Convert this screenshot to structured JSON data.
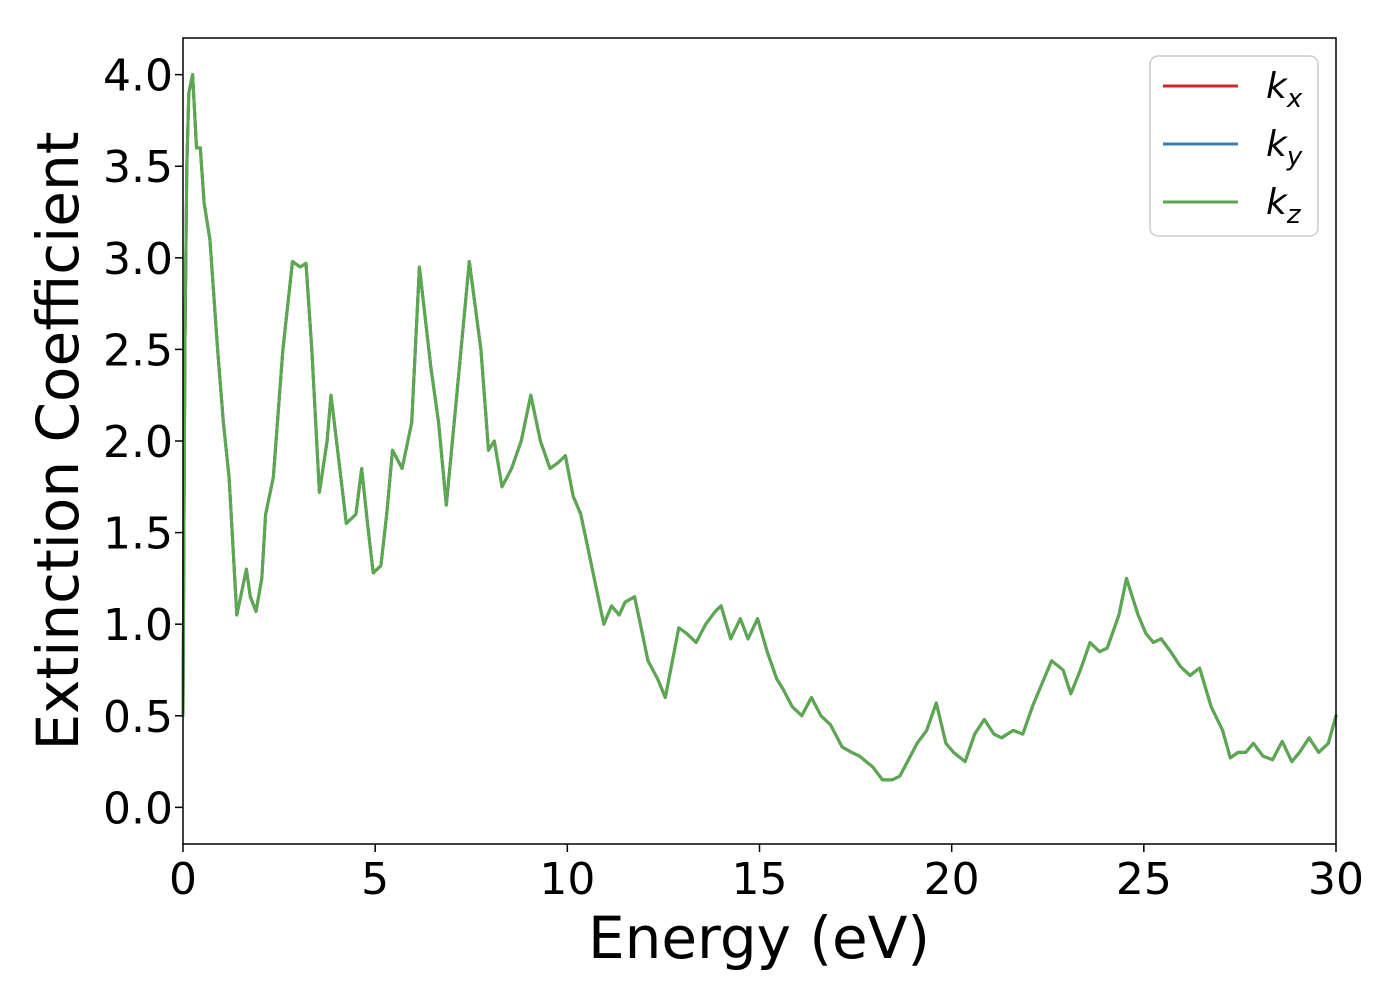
{
  "chart_data": {
    "type": "line",
    "title": "",
    "xlabel": "Energy (eV)",
    "ylabel": "Extinction Coefficient",
    "xlim": [
      0,
      30
    ],
    "ylim": [
      -0.2,
      4.2
    ],
    "xticks": [
      0,
      5,
      10,
      15,
      20,
      25,
      30
    ],
    "yticks": [
      0.0,
      0.5,
      1.0,
      1.5,
      2.0,
      2.5,
      3.0,
      3.5,
      4.0
    ],
    "xtick_labels": [
      "0",
      "5",
      "10",
      "15",
      "20",
      "25",
      "30"
    ],
    "ytick_labels": [
      "0.0",
      "0.5",
      "1.0",
      "1.5",
      "2.0",
      "2.5",
      "3.0",
      "3.5",
      "4.0"
    ],
    "grid": false,
    "legend_position": "top-right",
    "series": [
      {
        "name": "k_x",
        "label_main": "k",
        "label_sub": "x",
        "color": "#d62728",
        "x": [
          0.0,
          0.05,
          0.1,
          0.15,
          0.25,
          0.35,
          0.45,
          0.55,
          0.7,
          0.9,
          1.05,
          1.2,
          1.4,
          1.55,
          1.65,
          1.75,
          1.9,
          2.05,
          2.15,
          2.35,
          2.6,
          2.85,
          3.05,
          3.2,
          3.35,
          3.55,
          3.75,
          3.85,
          4.05,
          4.25,
          4.5,
          4.65,
          4.8,
          4.95,
          5.15,
          5.3,
          5.45,
          5.7,
          5.95,
          6.15,
          6.45,
          6.65,
          6.85,
          7.1,
          7.45,
          7.75,
          7.95,
          8.1,
          8.3,
          8.55,
          8.8,
          9.05,
          9.3,
          9.55,
          9.75,
          9.95,
          10.15,
          10.35,
          10.6,
          10.95,
          11.15,
          11.35,
          11.5,
          11.75,
          12.1,
          12.35,
          12.55,
          12.9,
          13.1,
          13.35,
          13.6,
          13.85,
          14.0,
          14.25,
          14.5,
          14.7,
          14.95,
          15.2,
          15.45,
          15.6,
          15.85,
          16.1,
          16.35,
          16.6,
          16.85,
          17.15,
          17.4,
          17.6,
          17.95,
          18.2,
          18.45,
          18.65,
          18.85,
          19.1,
          19.35,
          19.6,
          19.85,
          20.05,
          20.35,
          20.6,
          20.85,
          21.1,
          21.3,
          21.6,
          21.85,
          22.1,
          22.4,
          22.6,
          22.9,
          23.1,
          23.35,
          23.6,
          23.85,
          24.05,
          24.35,
          24.55,
          24.85,
          25.05,
          25.25,
          25.45,
          25.7,
          25.95,
          26.2,
          26.45,
          26.75,
          27.05,
          27.25,
          27.45,
          27.65,
          27.85,
          28.1,
          28.35,
          28.6,
          28.85,
          29.05,
          29.3,
          29.55,
          29.8,
          30.0
        ],
        "y": [
          0.5,
          2.5,
          3.5,
          3.9,
          4.0,
          3.6,
          3.6,
          3.3,
          3.1,
          2.5,
          2.1,
          1.8,
          1.05,
          1.2,
          1.3,
          1.15,
          1.07,
          1.25,
          1.6,
          1.8,
          2.5,
          2.98,
          2.95,
          2.97,
          2.5,
          1.72,
          2.0,
          2.25,
          1.9,
          1.55,
          1.6,
          1.85,
          1.55,
          1.28,
          1.32,
          1.6,
          1.95,
          1.85,
          2.1,
          2.95,
          2.4,
          2.1,
          1.65,
          2.2,
          2.98,
          2.5,
          1.95,
          2.0,
          1.75,
          1.85,
          2.0,
          2.25,
          2.0,
          1.85,
          1.88,
          1.92,
          1.7,
          1.6,
          1.35,
          1.0,
          1.1,
          1.05,
          1.12,
          1.15,
          0.8,
          0.7,
          0.6,
          0.98,
          0.95,
          0.9,
          1.0,
          1.07,
          1.1,
          0.92,
          1.03,
          0.92,
          1.03,
          0.85,
          0.7,
          0.65,
          0.55,
          0.5,
          0.6,
          0.5,
          0.45,
          0.33,
          0.3,
          0.28,
          0.22,
          0.15,
          0.15,
          0.17,
          0.25,
          0.35,
          0.42,
          0.57,
          0.35,
          0.3,
          0.25,
          0.4,
          0.48,
          0.4,
          0.38,
          0.42,
          0.4,
          0.55,
          0.7,
          0.8,
          0.75,
          0.62,
          0.75,
          0.9,
          0.85,
          0.87,
          1.05,
          1.25,
          1.05,
          0.95,
          0.9,
          0.92,
          0.85,
          0.77,
          0.72,
          0.76,
          0.55,
          0.42,
          0.27,
          0.3,
          0.3,
          0.35,
          0.28,
          0.26,
          0.36,
          0.25,
          0.3,
          0.38,
          0.3,
          0.35,
          0.5
        ]
      },
      {
        "name": "k_y",
        "label_main": "k",
        "label_sub": "y",
        "color": "#3c7fb5",
        "same_as": "k_x"
      },
      {
        "name": "k_z",
        "label_main": "k",
        "label_sub": "z",
        "color": "#5aa94f",
        "same_as": "k_x"
      }
    ]
  }
}
